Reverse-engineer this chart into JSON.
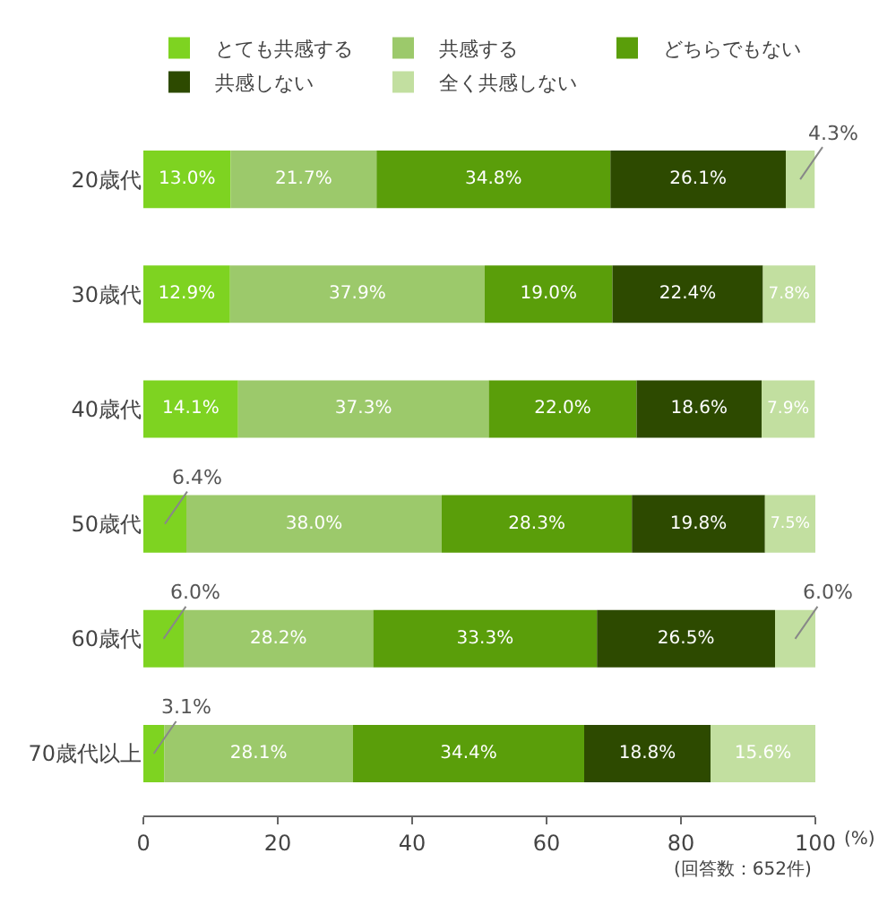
{
  "chart_data": {
    "type": "bar",
    "orientation": "horizontal",
    "stacked": true,
    "categories": [
      "20歳代",
      "30歳代",
      "40歳代",
      "50歳代",
      "60歳代",
      "70歳代以上"
    ],
    "series": [
      {
        "name": "とても共感する",
        "color": "#7ed321",
        "values": [
          13.0,
          12.9,
          14.1,
          6.4,
          6.0,
          3.1
        ],
        "value_labels": [
          "13.0%",
          "12.9%",
          "14.1%",
          "6.4%",
          "6.0%",
          "3.1%"
        ]
      },
      {
        "name": "共感する",
        "color": "#9cc96b",
        "values": [
          21.7,
          37.9,
          37.3,
          38.0,
          28.2,
          28.1
        ],
        "value_labels": [
          "21.7%",
          "37.9%",
          "37.3%",
          "38.0%",
          "28.2%",
          "28.1%"
        ]
      },
      {
        "name": "どちらでもない",
        "color": "#5a9e0a",
        "values": [
          34.8,
          19.0,
          22.0,
          28.3,
          33.3,
          34.4
        ],
        "value_labels": [
          "34.8%",
          "19.0%",
          "22.0%",
          "28.3%",
          "33.3%",
          "34.4%"
        ]
      },
      {
        "name": "共感しない",
        "color": "#2d4a00",
        "values": [
          26.1,
          22.4,
          18.6,
          19.8,
          26.5,
          18.8
        ],
        "value_labels": [
          "26.1%",
          "22.4%",
          "18.6%",
          "19.8%",
          "26.5%",
          "18.8%"
        ]
      },
      {
        "name": "全く共感しない",
        "color": "#c2dfa0",
        "values": [
          4.3,
          7.8,
          7.9,
          7.5,
          6.0,
          15.6
        ],
        "value_labels": [
          "4.3%",
          "7.8%",
          "7.9%",
          "7.5%",
          "6.0%",
          "15.6%"
        ]
      }
    ],
    "xlim": [
      0,
      100
    ],
    "xticks": [
      0,
      20,
      40,
      60,
      80,
      100
    ],
    "xlabel": "(%)",
    "annotations": [
      "(回答数：652件)"
    ],
    "legend": "top left"
  }
}
